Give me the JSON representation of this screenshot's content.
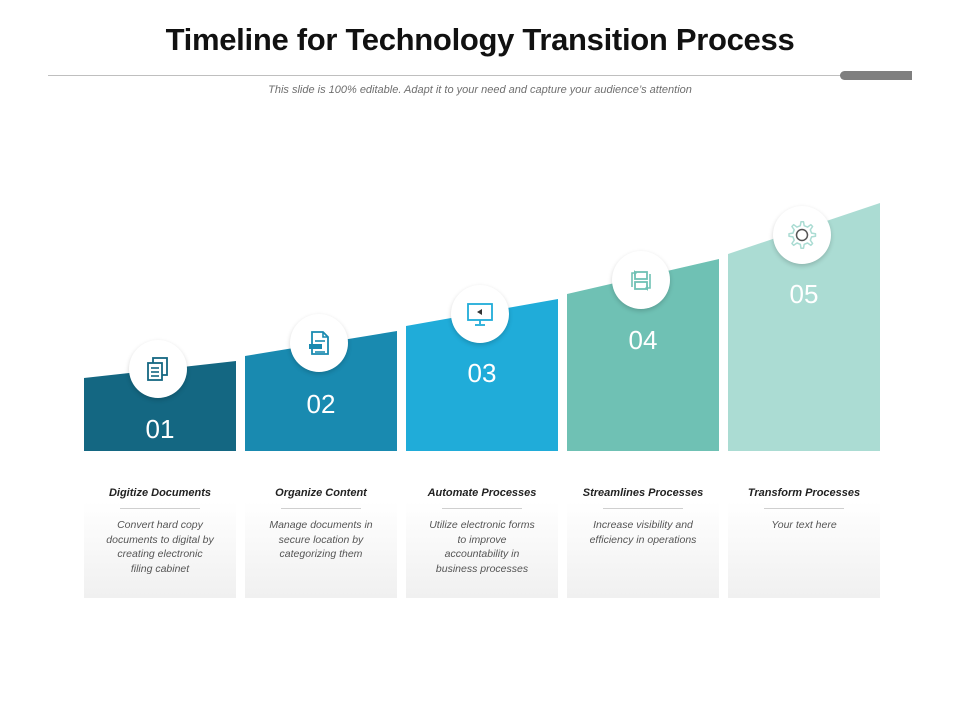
{
  "title": "Timeline for Technology Transition Process",
  "subtitle": "This slide is 100% editable. Adapt it to your need and capture your audience’s attention",
  "steps": [
    {
      "number": "01",
      "title": "Digitize Documents",
      "description": "Convert hard copy documents to digital by creating electronic filing cabinet",
      "icon": "documents-icon",
      "color": "#146782"
    },
    {
      "number": "02",
      "title": "Organize Content",
      "description": "Manage documents in secure location by categorizing them",
      "icon": "file-list-icon",
      "color": "#198ab0"
    },
    {
      "number": "03",
      "title": "Automate Processes",
      "description": "Utilize electronic forms to improve accountability in business processes",
      "icon": "monitor-icon",
      "color": "#20acd9"
    },
    {
      "number": "04",
      "title": "Streamlines Processes",
      "description": "Increase visibility and efficiency in operations",
      "icon": "workflow-icon",
      "color": "#6fc1b4"
    },
    {
      "number": "05",
      "title": "Transform Processes",
      "description": "Your text here",
      "icon": "gear-icon",
      "color": "#abdcd3"
    }
  ]
}
